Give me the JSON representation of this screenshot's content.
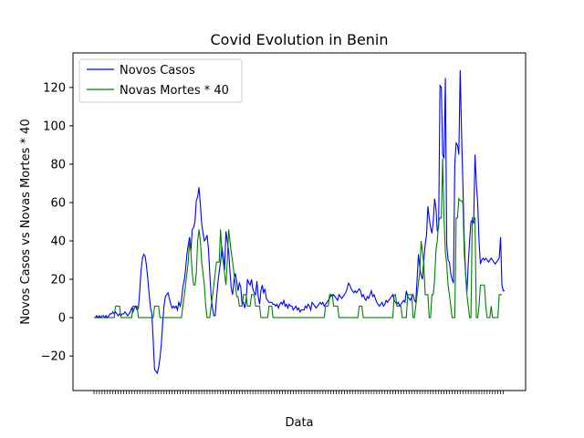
{
  "chart_data": {
    "type": "line",
    "title": "Covid Evolution in Benin",
    "xlabel": "Data",
    "ylabel": "Novos Casos vs Novas Mortes * 40",
    "ylim": [
      -38,
      138
    ],
    "yticks": [
      -20,
      0,
      20,
      40,
      60,
      80,
      100,
      120
    ],
    "grid": false,
    "legend_position": "upper-left",
    "series": [
      {
        "name": "Novos Casos",
        "color": "#0000ff",
        "values": [
          0,
          0,
          1,
          0,
          1,
          0,
          1,
          1,
          0,
          1,
          0,
          1,
          2,
          2,
          3,
          2,
          3,
          2,
          1,
          2,
          1,
          2,
          2,
          3,
          2,
          1,
          2,
          3,
          5,
          3,
          5,
          6,
          4,
          5,
          14,
          25,
          31,
          33,
          32,
          27,
          20,
          12,
          5,
          2,
          -12,
          -27,
          -28,
          -29,
          -26,
          -21,
          -14,
          -3,
          6,
          11,
          12,
          13,
          10,
          7,
          5,
          6,
          5,
          6,
          4,
          8,
          6,
          9,
          16,
          19,
          25,
          33,
          38,
          42,
          35,
          46,
          47,
          50,
          61,
          63,
          68,
          59,
          49,
          44,
          40,
          41,
          43,
          36,
          23,
          11,
          5,
          1,
          1,
          10,
          18,
          24,
          29,
          37,
          32,
          25,
          45,
          40,
          35,
          24,
          15,
          12,
          20,
          23,
          19,
          14,
          18,
          16,
          7,
          8,
          5,
          9,
          20,
          18,
          17,
          20,
          15,
          13,
          12,
          19,
          11,
          7,
          14,
          17,
          13,
          15,
          10,
          9,
          8,
          8,
          8,
          7,
          7,
          6,
          7,
          5,
          7,
          8,
          7,
          9,
          6,
          7,
          5,
          7,
          6,
          6,
          4,
          5,
          6,
          4,
          5,
          3,
          4,
          4,
          4,
          6,
          5,
          7,
          6,
          4,
          8,
          7,
          6,
          5,
          6,
          7,
          8,
          7,
          8,
          6,
          7,
          8,
          9,
          10,
          12,
          11,
          12,
          11,
          10,
          9,
          12,
          11,
          10,
          11,
          12,
          13,
          15,
          18,
          17,
          15,
          14,
          13,
          14,
          13,
          14,
          15,
          14,
          11,
          12,
          10,
          9,
          11,
          10,
          12,
          14,
          11,
          12,
          10,
          8,
          7,
          6,
          7,
          8,
          6,
          7,
          9,
          8,
          9,
          10,
          11,
          12,
          9,
          8,
          7,
          8,
          6,
          7,
          8,
          9,
          8,
          14,
          11,
          10,
          9,
          11,
          12,
          9,
          8,
          20,
          33,
          26,
          22,
          20,
          30,
          38,
          43,
          58,
          52,
          47,
          44,
          50,
          62,
          57,
          45,
          47,
          121,
          120,
          85,
          83,
          125,
          38,
          30,
          29,
          23,
          20,
          18,
          80,
          91,
          90,
          85,
          129,
          97,
          70,
          41,
          23,
          13,
          28,
          40,
          50,
          51,
          49,
          85,
          70,
          60,
          40,
          28,
          30,
          31,
          30,
          31,
          30,
          29,
          30,
          31,
          30,
          29,
          28,
          29,
          30,
          31,
          42,
          17,
          14,
          14
        ]
      },
      {
        "name": "Novas Mortes * 40",
        "color": "#008000",
        "values": [
          0,
          0,
          0,
          0,
          0,
          0,
          0,
          0,
          0,
          0,
          0,
          0,
          0,
          0,
          0,
          0,
          6,
          6,
          6,
          6,
          0,
          0,
          0,
          0,
          0,
          0,
          0,
          0,
          0,
          6,
          6,
          6,
          6,
          0,
          0,
          0,
          0,
          0,
          0,
          0,
          0,
          0,
          0,
          0,
          0,
          6,
          6,
          6,
          6,
          0,
          0,
          0,
          0,
          0,
          0,
          0,
          0,
          0,
          0,
          0,
          0,
          0,
          0,
          0,
          0,
          0,
          6,
          11,
          17,
          23,
          29,
          40,
          34,
          23,
          17,
          17,
          23,
          40,
          46,
          40,
          29,
          23,
          17,
          6,
          0,
          0,
          0,
          6,
          11,
          17,
          23,
          29,
          29,
          29,
          46,
          34,
          29,
          23,
          17,
          29,
          46,
          40,
          34,
          29,
          23,
          17,
          11,
          11,
          6,
          6,
          6,
          12,
          12,
          12,
          6,
          6,
          6,
          12,
          12,
          12,
          6,
          6,
          6,
          6,
          0,
          0,
          0,
          0,
          0,
          0,
          6,
          6,
          6,
          0,
          0,
          0,
          0,
          0,
          0,
          0,
          0,
          0,
          0,
          0,
          0,
          0,
          0,
          0,
          0,
          0,
          0,
          0,
          0,
          0,
          0,
          0,
          0,
          0,
          0,
          0,
          0,
          0,
          0,
          0,
          0,
          0,
          0,
          0,
          0,
          0,
          0,
          0,
          6,
          6,
          6,
          12,
          12,
          12,
          6,
          6,
          6,
          6,
          0,
          0,
          0,
          0,
          0,
          0,
          0,
          0,
          0,
          0,
          0,
          0,
          0,
          0,
          0,
          6,
          6,
          6,
          0,
          0,
          0,
          0,
          0,
          0,
          0,
          0,
          0,
          0,
          0,
          0,
          0,
          0,
          0,
          0,
          0,
          0,
          0,
          0,
          0,
          0,
          0,
          12,
          12,
          6,
          6,
          6,
          6,
          0,
          0,
          0,
          0,
          12,
          12,
          12,
          12,
          0,
          0,
          6,
          12,
          18,
          24,
          40,
          34,
          28,
          12,
          12,
          12,
          0,
          0,
          12,
          12,
          20,
          35,
          40,
          50,
          52,
          52,
          83,
          52,
          34,
          28,
          17,
          12,
          6,
          0,
          0,
          0,
          52,
          52,
          62,
          61,
          61,
          60,
          34,
          23,
          12,
          6,
          0,
          0,
          52,
          52,
          52,
          0,
          0,
          6,
          17,
          17,
          17,
          17,
          6,
          0,
          0,
          0,
          6,
          0,
          0,
          0,
          0,
          0,
          12,
          12,
          12
        ]
      }
    ]
  }
}
